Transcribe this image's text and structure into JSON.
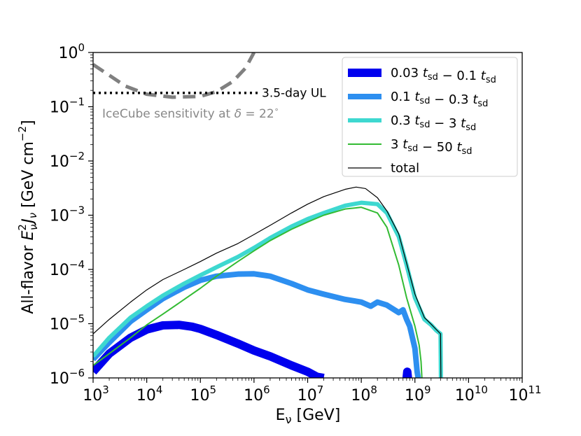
{
  "chart_data": {
    "type": "line",
    "xscale": "log",
    "yscale": "log",
    "xlim": [
      1000,
      100000000000
    ],
    "ylim": [
      1e-06,
      1
    ],
    "xlabel": {
      "main": "E",
      "sub": "ν",
      "rest": " [GeV]"
    },
    "ylabel": {
      "prefix": "All-flavor ",
      "E": "E",
      "sup": "2",
      "sub": "ν",
      "J": "J",
      "jsub": "ν",
      "units": " [GeV cm",
      "unitsup": "−2",
      "close": "]"
    },
    "x_ticks": [
      {
        "value": 1000,
        "base": "10",
        "exp": "3"
      },
      {
        "value": 10000,
        "base": "10",
        "exp": "4"
      },
      {
        "value": 100000,
        "base": "10",
        "exp": "5"
      },
      {
        "value": 1000000,
        "base": "10",
        "exp": "6"
      },
      {
        "value": 10000000,
        "base": "10",
        "exp": "7"
      },
      {
        "value": 100000000,
        "base": "10",
        "exp": "8"
      },
      {
        "value": 1000000000,
        "base": "10",
        "exp": "9"
      },
      {
        "value": 10000000000,
        "base": "10",
        "exp": "10"
      },
      {
        "value": 100000000000,
        "base": "10",
        "exp": "11"
      }
    ],
    "y_ticks": [
      {
        "value": 1e-06,
        "base": "10",
        "exp": "−6"
      },
      {
        "value": 1e-05,
        "base": "10",
        "exp": "−5"
      },
      {
        "value": 0.0001,
        "base": "10",
        "exp": "−4"
      },
      {
        "value": 0.001,
        "base": "10",
        "exp": "−3"
      },
      {
        "value": 0.01,
        "base": "10",
        "exp": "−2"
      },
      {
        "value": 0.1,
        "base": "10",
        "exp": "−1"
      },
      {
        "value": 1,
        "base": "10",
        "exp": "0"
      }
    ],
    "series": [
      {
        "name": "0.03 t_sd − 0.1 t_sd",
        "legend": [
          {
            "t": "0.03 "
          },
          {
            "t": "t",
            "i": true
          },
          {
            "t": "sd",
            "sub": true
          },
          {
            "t": " − 0.1 "
          },
          {
            "t": "t",
            "i": true
          },
          {
            "t": "sd",
            "sub": true
          }
        ],
        "color": "#0000ee",
        "width": 12,
        "dash": "",
        "points": [
          [
            1000,
            1.3e-06
          ],
          [
            2000,
            2.8e-06
          ],
          [
            5000,
            5.5e-06
          ],
          [
            10000,
            7.8e-06
          ],
          [
            20000,
            9.3e-06
          ],
          [
            40000,
            9.5e-06
          ],
          [
            70000,
            8.8e-06
          ],
          [
            100000,
            8e-06
          ],
          [
            200000,
            6.2e-06
          ],
          [
            500000,
            4.3e-06
          ],
          [
            1000000,
            3.2e-06
          ],
          [
            2000000,
            2.5e-06
          ],
          [
            5000000,
            1.7e-06
          ],
          [
            10000000,
            1.3e-06
          ],
          [
            15000000,
            1.05e-06
          ],
          [
            20000000,
            1e-06
          ]
        ],
        "extra_segments": [
          [
            [
              700000000,
              1e-06
            ],
            [
              720000000,
              1.3e-06
            ],
            [
              740000000,
              1e-06
            ]
          ]
        ]
      },
      {
        "name": "0.1 t_sd − 0.3 t_sd",
        "legend": [
          {
            "t": "0.1 "
          },
          {
            "t": "t",
            "i": true
          },
          {
            "t": "sd",
            "sub": true
          },
          {
            "t": " − 0.3 "
          },
          {
            "t": "t",
            "i": true
          },
          {
            "t": "sd",
            "sub": true
          }
        ],
        "color": "#2d8ff0",
        "width": 8,
        "dash": "",
        "points": [
          [
            1000,
            2.2e-06
          ],
          [
            2000,
            4.5e-06
          ],
          [
            5000,
            1.1e-05
          ],
          [
            10000,
            1.8e-05
          ],
          [
            20000,
            2.9e-05
          ],
          [
            50000,
            4.7e-05
          ],
          [
            100000,
            6.3e-05
          ],
          [
            200000,
            7.5e-05
          ],
          [
            500000,
            8.2e-05
          ],
          [
            1000000,
            8.3e-05
          ],
          [
            2000000,
            7.5e-05
          ],
          [
            5000000,
            5.5e-05
          ],
          [
            10000000,
            4.2e-05
          ],
          [
            20000000,
            3.5e-05
          ],
          [
            50000000,
            2.8e-05
          ],
          [
            100000000,
            2.5e-05
          ],
          [
            150000000,
            2.1e-05
          ],
          [
            200000000,
            2.5e-05
          ],
          [
            300000000,
            2.2e-05
          ],
          [
            500000000,
            1.6e-05
          ],
          [
            600000000,
            1.8e-05
          ],
          [
            700000000,
            1.2e-05
          ],
          [
            800000000,
            9e-06
          ],
          [
            1000000000,
            3.5e-06
          ],
          [
            1100000000,
            1.3e-06
          ],
          [
            1150000000,
            1e-06
          ]
        ]
      },
      {
        "name": "0.3 t_sd − 3 t_sd",
        "legend": [
          {
            "t": "0.3 "
          },
          {
            "t": "t",
            "i": true
          },
          {
            "t": "sd",
            "sub": true
          },
          {
            "t": " − 3 "
          },
          {
            "t": "t",
            "i": true
          },
          {
            "t": "sd",
            "sub": true
          }
        ],
        "color": "#3ed8d0",
        "width": 6,
        "dash": "",
        "points": [
          [
            1000,
            2.5e-06
          ],
          [
            2000,
            5.5e-06
          ],
          [
            5000,
            1.3e-05
          ],
          [
            10000,
            2.1e-05
          ],
          [
            20000,
            3.3e-05
          ],
          [
            50000,
            5.5e-05
          ],
          [
            100000,
            7.8e-05
          ],
          [
            200000,
            0.00011
          ],
          [
            500000,
            0.00017
          ],
          [
            1000000,
            0.00025
          ],
          [
            2000000,
            0.00038
          ],
          [
            5000000,
            0.00062
          ],
          [
            10000000,
            0.00085
          ],
          [
            20000000,
            0.0011
          ],
          [
            50000000,
            0.0015
          ],
          [
            100000000,
            0.0017
          ],
          [
            200000000,
            0.0016
          ],
          [
            300000000,
            0.0011
          ],
          [
            500000000,
            0.0004
          ],
          [
            700000000,
            0.00012
          ],
          [
            1000000000,
            3e-05
          ],
          [
            1500000000,
            1.2e-05
          ],
          [
            2000000000,
            9.5e-06
          ],
          [
            2500000000,
            7.5e-06
          ],
          [
            3000000000,
            6.5e-06
          ],
          [
            3050000000,
            1e-06
          ]
        ]
      },
      {
        "name": "3 t_sd − 50 t_sd",
        "legend": [
          {
            "t": "3 "
          },
          {
            "t": "t",
            "i": true
          },
          {
            "t": "sd",
            "sub": true
          },
          {
            "t": " − 50 "
          },
          {
            "t": "t",
            "i": true
          },
          {
            "t": "sd",
            "sub": true
          }
        ],
        "color": "#33bb33",
        "width": 2,
        "dash": "",
        "points": [
          [
            1000,
            1.7e-06
          ],
          [
            2000,
            2.8e-06
          ],
          [
            5000,
            5.5e-06
          ],
          [
            10000,
            9.5e-06
          ],
          [
            20000,
            1.5e-05
          ],
          [
            50000,
            2.8e-05
          ],
          [
            100000,
            4.5e-05
          ],
          [
            200000,
            7.5e-05
          ],
          [
            500000,
            0.00014
          ],
          [
            1000000,
            0.00022
          ],
          [
            2000000,
            0.00034
          ],
          [
            5000000,
            0.00055
          ],
          [
            10000000,
            0.00075
          ],
          [
            20000000,
            0.001
          ],
          [
            50000000,
            0.0013
          ],
          [
            100000000,
            0.0014
          ],
          [
            200000000,
            0.0011
          ],
          [
            300000000,
            0.0006
          ],
          [
            500000000,
            0.00012
          ],
          [
            700000000,
            3e-05
          ],
          [
            1000000000,
            9e-06
          ],
          [
            1200000000,
            4e-06
          ],
          [
            1300000000,
            2e-06
          ],
          [
            1350000000,
            1e-06
          ]
        ]
      },
      {
        "name": "total",
        "legend": [
          {
            "t": "total"
          }
        ],
        "color": "#000000",
        "width": 1.2,
        "dash": "",
        "points": [
          [
            1000,
            6.5e-06
          ],
          [
            2000,
            1.2e-05
          ],
          [
            5000,
            2.5e-05
          ],
          [
            10000,
            4.2e-05
          ],
          [
            20000,
            6.5e-05
          ],
          [
            50000,
            0.0001
          ],
          [
            100000,
            0.00014
          ],
          [
            200000,
            0.0002
          ],
          [
            500000,
            0.0003
          ],
          [
            1000000,
            0.00044
          ],
          [
            2000000,
            0.00065
          ],
          [
            5000000,
            0.0011
          ],
          [
            10000000,
            0.0016
          ],
          [
            20000000,
            0.0022
          ],
          [
            50000000,
            0.003
          ],
          [
            80000000,
            0.0033
          ],
          [
            120000000,
            0.0031
          ],
          [
            200000000,
            0.0021
          ],
          [
            300000000,
            0.0012
          ],
          [
            500000000,
            0.00045
          ],
          [
            700000000,
            0.00013
          ],
          [
            1000000000,
            3.5e-05
          ],
          [
            1500000000,
            1.3e-05
          ],
          [
            2000000000,
            9.8e-06
          ],
          [
            2500000000,
            7.8e-06
          ],
          [
            3000000000,
            6.5e-06
          ],
          [
            3050000000,
            1e-06
          ]
        ]
      }
    ],
    "reference_curves": [
      {
        "name": "IceCube sensitivity at δ = 22°",
        "color": "#808080",
        "width": 5,
        "dash": "18,10",
        "points": [
          [
            1000,
            0.6
          ],
          [
            2000,
            0.38
          ],
          [
            4000,
            0.24
          ],
          [
            10000,
            0.17
          ],
          [
            30000,
            0.15
          ],
          [
            100000,
            0.155
          ],
          [
            200000,
            0.19
          ],
          [
            400000,
            0.29
          ],
          [
            700000,
            0.52
          ],
          [
            1000000,
            1
          ]
        ]
      },
      {
        "name": "3.5-day UL",
        "color": "#000000",
        "width": 3.5,
        "dash": "3,5",
        "points": [
          [
            1000,
            0.18
          ],
          [
            1200000,
            0.18
          ]
        ]
      }
    ],
    "annotations": {
      "ul_label": "3.5-day UL",
      "sensitivity_prefix": "IceCube sensitivity at ",
      "delta": "δ",
      "sensitivity_value": " = 22",
      "degree": "∘",
      "sensitivity_color": "#888888"
    },
    "legend_position": "top-right"
  }
}
